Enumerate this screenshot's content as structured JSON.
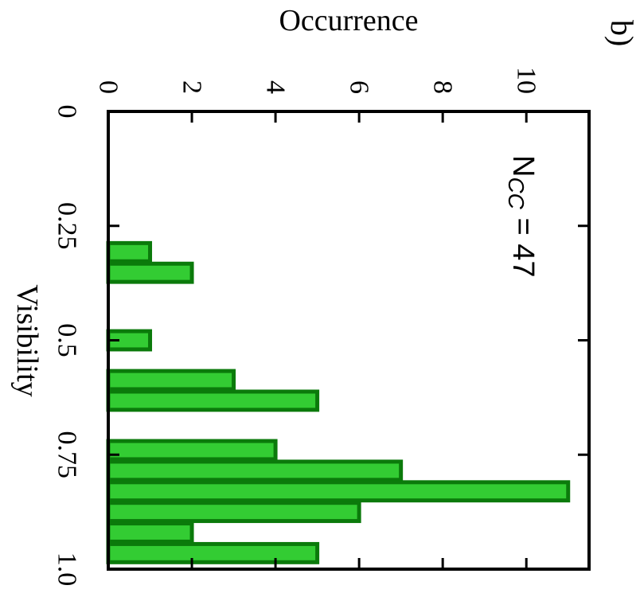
{
  "chart_data": {
    "type": "bar",
    "orientation": "rotated",
    "panel_label": "b)",
    "annotation": {
      "main": "N",
      "sub": "CC",
      "rest": " = 47"
    },
    "xlabel": "Visibility",
    "ylabel": "Occurrence",
    "xlim": [
      0,
      1.0
    ],
    "ylim": [
      0,
      11.5
    ],
    "x_ticks": [
      {
        "value": 0,
        "label": "0"
      },
      {
        "value": 0.25,
        "label": "0.25"
      },
      {
        "value": 0.5,
        "label": "0.5"
      },
      {
        "value": 0.75,
        "label": "0.75"
      },
      {
        "value": 1.0,
        "label": "1.0"
      }
    ],
    "y_ticks": [
      {
        "value": 0,
        "label": "0"
      },
      {
        "value": 2,
        "label": "2"
      },
      {
        "value": 4,
        "label": "4"
      },
      {
        "value": 6,
        "label": "6"
      },
      {
        "value": 8,
        "label": "8"
      },
      {
        "value": 10,
        "label": "10"
      }
    ],
    "bin_width": 0.045,
    "bins": [
      {
        "x": 0.3075,
        "value": 1
      },
      {
        "x": 0.3525,
        "value": 2
      },
      {
        "x": 0.5,
        "value": 1
      },
      {
        "x": 0.587,
        "value": 3
      },
      {
        "x": 0.632,
        "value": 5
      },
      {
        "x": 0.74,
        "value": 4
      },
      {
        "x": 0.785,
        "value": 7
      },
      {
        "x": 0.83,
        "value": 11
      },
      {
        "x": 0.875,
        "value": 6
      },
      {
        "x": 0.92,
        "value": 2
      },
      {
        "x": 0.965,
        "value": 5
      }
    ],
    "grid": false,
    "legend": "none",
    "colors": {
      "fill": "#33cc33",
      "edge": "#0b7a0b",
      "axis": "#000000"
    }
  }
}
